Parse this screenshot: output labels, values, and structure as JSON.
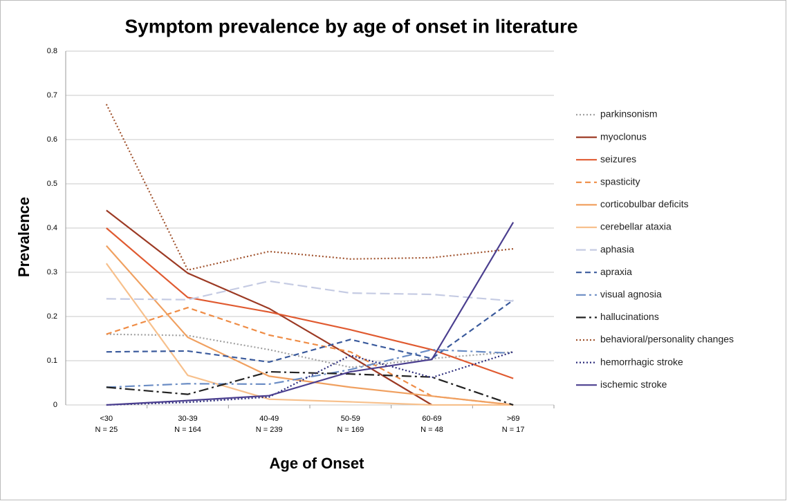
{
  "chart_data": {
    "type": "line",
    "title": "Symptom prevalence by age of onset in literature",
    "x_label": "Age of Onset",
    "y_label": "Prevalence",
    "categories": [
      "<30",
      "30-39",
      "40-49",
      "50-59",
      "60-69",
      ">69"
    ],
    "category_counts": [
      "N = 25",
      "N = 164",
      "N = 239",
      "N = 169",
      "N = 48",
      "N = 17"
    ],
    "ylim": [
      0,
      0.8
    ],
    "yticks": [
      0,
      0.1,
      0.2,
      0.3,
      0.4,
      0.5,
      0.6,
      0.7,
      0.8
    ],
    "grid": true,
    "legend": "right",
    "series": [
      {
        "name": "parkinsonism",
        "color": "#a0a0a0",
        "dash": "dotted",
        "values": [
          0.16,
          0.157,
          0.125,
          0.085,
          0.105,
          0.12
        ]
      },
      {
        "name": "myoclonus",
        "color": "#9c3a24",
        "dash": "solid",
        "values": [
          0.44,
          0.298,
          0.218,
          0.11,
          0,
          null
        ]
      },
      {
        "name": "seizures",
        "color": "#e05a30",
        "dash": "solid",
        "values": [
          0.4,
          0.243,
          0.21,
          0.17,
          0.125,
          0.06
        ]
      },
      {
        "name": "spasticity",
        "color": "#ef8c45",
        "dash": "dashed",
        "values": [
          0.16,
          0.22,
          0.158,
          0.12,
          0.02,
          0
        ]
      },
      {
        "name": "corticobulbar deficits",
        "color": "#f0a060",
        "dash": "solid",
        "values": [
          0.36,
          0.153,
          0.065,
          0.04,
          0.02,
          0
        ]
      },
      {
        "name": "cerebellar ataxia",
        "color": "#f7c08c",
        "dash": "solid",
        "values": [
          0.32,
          0.067,
          0.013,
          0.007,
          0,
          0
        ]
      },
      {
        "name": "aphasia",
        "color": "#c5cbe3",
        "dash": "longdash",
        "values": [
          0.24,
          0.238,
          0.28,
          0.253,
          0.25,
          0.235
        ]
      },
      {
        "name": "apraxia",
        "color": "#3a5a9c",
        "dash": "dashed",
        "values": [
          0.12,
          0.122,
          0.097,
          0.148,
          0.105,
          0.237
        ]
      },
      {
        "name": "visual agnosia",
        "color": "#6a8cc4",
        "dash": "dashdot",
        "values": [
          0.04,
          0.048,
          0.047,
          0.08,
          0.125,
          0.117
        ]
      },
      {
        "name": "hallucinations",
        "color": "#222222",
        "dash": "dashdot",
        "values": [
          0.04,
          0.024,
          0.075,
          0.07,
          0.063,
          0
        ]
      },
      {
        "name": "behavioral/personality changes",
        "color": "#a0522d",
        "dash": "dotted",
        "values": [
          0.68,
          0.305,
          0.347,
          0.33,
          0.333,
          0.353
        ]
      },
      {
        "name": "hemorrhagic stroke",
        "color": "#2a2a7a",
        "dash": "dotted",
        "values": [
          0,
          0.006,
          0.018,
          0.112,
          0.062,
          0.12
        ]
      },
      {
        "name": "ischemic stroke",
        "color": "#4b3f8f",
        "dash": "solid",
        "values": [
          0,
          0.01,
          0.021,
          0.075,
          0.103,
          0.413
        ]
      }
    ]
  }
}
